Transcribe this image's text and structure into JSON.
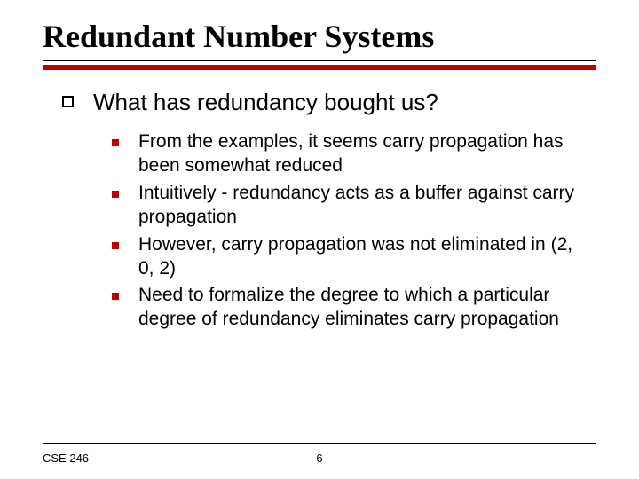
{
  "colors": {
    "accent": "#c00000",
    "text": "#000000",
    "background": "#ffffff"
  },
  "title": "Redundant Number Systems",
  "level1": {
    "text": "What has redundancy bought us?"
  },
  "level2": [
    {
      "text": "From the examples, it seems carry propagation has been somewhat reduced"
    },
    {
      "text": "Intuitively - redundancy acts as a buffer against carry propagation"
    },
    {
      "text": "However, carry propagation was not eliminated in (2, 0, 2)"
    },
    {
      "text": "Need to formalize the degree to which a particular degree of redundancy eliminates carry propagation"
    }
  ],
  "footer": {
    "left": "CSE 246",
    "page": "6"
  }
}
